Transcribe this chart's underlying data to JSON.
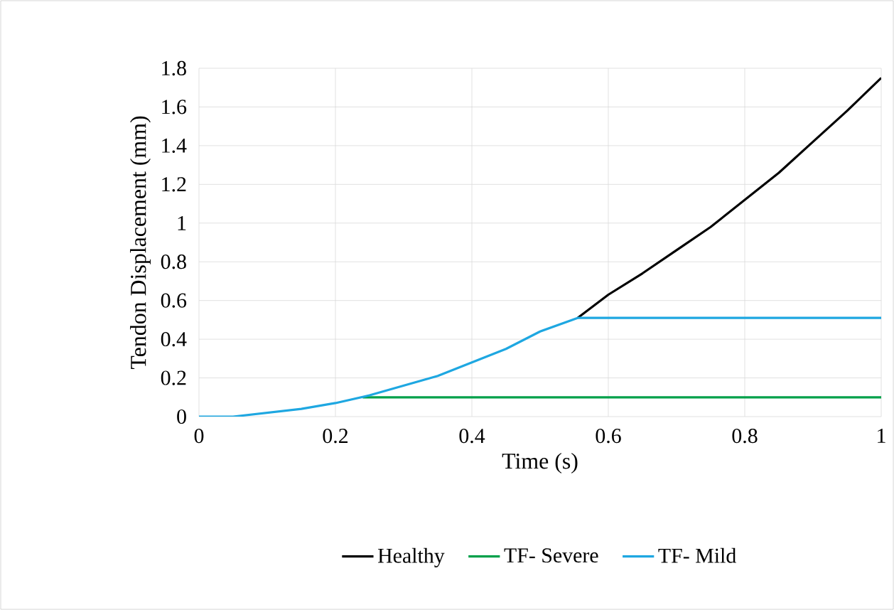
{
  "chart_data": {
    "type": "line",
    "xlabel": "Time (s)",
    "ylabel": "Tendon Displacement (mm)",
    "xlim": [
      0,
      1
    ],
    "ylim": [
      0,
      1.8
    ],
    "xticks": [
      0,
      0.2,
      0.4,
      0.6,
      0.8,
      1
    ],
    "yticks": [
      0,
      0.2,
      0.4,
      0.6,
      0.8,
      1,
      1.2,
      1.4,
      1.6,
      1.8
    ],
    "grid": true,
    "legend": "bottom",
    "series": [
      {
        "name": "Healthy",
        "color": "#000000",
        "x": [
          0.555,
          0.6,
          0.65,
          0.7,
          0.75,
          0.8,
          0.85,
          0.9,
          0.95,
          1
        ],
        "values": [
          0.51,
          0.63,
          0.74,
          0.86,
          0.98,
          1.12,
          1.26,
          1.42,
          1.58,
          1.75
        ]
      },
      {
        "name": "TF- Severe",
        "color": "#00a04a",
        "x": [
          0.24,
          1
        ],
        "values": [
          0.1,
          0.1
        ]
      },
      {
        "name": "TF- Mild",
        "color": "#1ea7e1",
        "x": [
          0,
          0.05,
          0.1,
          0.15,
          0.2,
          0.25,
          0.3,
          0.35,
          0.4,
          0.45,
          0.5,
          0.555,
          1
        ],
        "values": [
          0,
          0,
          0.02,
          0.04,
          0.07,
          0.11,
          0.16,
          0.21,
          0.28,
          0.35,
          0.44,
          0.51,
          0.51
        ]
      }
    ]
  }
}
